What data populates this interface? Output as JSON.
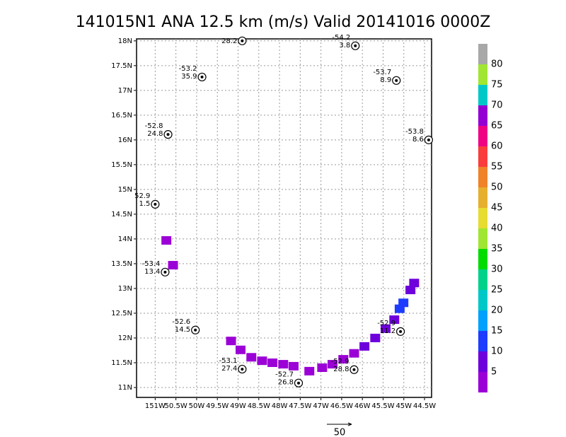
{
  "chart_data": {
    "type": "swath-map",
    "title": "141015N1 ANA 12.5 km (m/s) Valid 20141016 0000Z",
    "xlim": [
      151.45,
      144.33
    ],
    "xticks": [
      {
        "value": 151,
        "label": "151W"
      },
      {
        "value": 150.5,
        "label": "50.5W"
      },
      {
        "value": 150,
        "label": "50W"
      },
      {
        "value": 149.5,
        "label": "49.5W"
      },
      {
        "value": 149,
        "label": "49W"
      },
      {
        "value": 148.5,
        "label": "48.5W"
      },
      {
        "value": 148,
        "label": "48W"
      },
      {
        "value": 147.5,
        "label": "47.5W"
      },
      {
        "value": 147,
        "label": "47W"
      },
      {
        "value": 146.5,
        "label": "46.5W"
      },
      {
        "value": 146,
        "label": "46W"
      },
      {
        "value": 145.5,
        "label": "45.5W"
      },
      {
        "value": 145,
        "label": "45W"
      },
      {
        "value": 144.5,
        "label": "44.5W"
      }
    ],
    "ylim": [
      10.8,
      18.04
    ],
    "yticks": [
      {
        "value": 11,
        "label": "11N"
      },
      {
        "value": 11.5,
        "label": "11.5N"
      },
      {
        "value": 12,
        "label": "12N"
      },
      {
        "value": 12.5,
        "label": "12.5N"
      },
      {
        "value": 13,
        "label": "13N"
      },
      {
        "value": 13.5,
        "label": "13.5N"
      },
      {
        "value": 14,
        "label": "14N"
      },
      {
        "value": 14.5,
        "label": "14.5N"
      },
      {
        "value": 15,
        "label": "15N"
      },
      {
        "value": 15.5,
        "label": "15.5N"
      },
      {
        "value": 16,
        "label": "16N"
      },
      {
        "value": 16.5,
        "label": "16.5N"
      },
      {
        "value": 17,
        "label": "17N"
      },
      {
        "value": 17.5,
        "label": "17.5N"
      },
      {
        "value": 18,
        "label": "18N"
      }
    ],
    "grid": true,
    "stations": [
      {
        "lon": 148.9,
        "lat": 18.0,
        "labels": [
          "28.2"
        ]
      },
      {
        "lon": 146.17,
        "lat": 17.9,
        "labels": [
          "-54.2",
          "3.8"
        ]
      },
      {
        "lon": 149.87,
        "lat": 17.27,
        "labels": [
          "-53.2",
          "35.9"
        ]
      },
      {
        "lon": 145.18,
        "lat": 17.2,
        "labels": [
          "-53.7",
          "8.9"
        ]
      },
      {
        "lon": 150.69,
        "lat": 16.11,
        "labels": [
          "-52.8",
          "24.8"
        ]
      },
      {
        "lon": 144.4,
        "lat": 16.0,
        "labels": [
          "-53.8",
          "8.6"
        ]
      },
      {
        "lon": 151.0,
        "lat": 14.7,
        "labels": [
          "52.9",
          "1.5"
        ]
      },
      {
        "lon": 150.76,
        "lat": 13.33,
        "labels": [
          "-53.4",
          "13.4"
        ]
      },
      {
        "lon": 150.03,
        "lat": 12.16,
        "labels": [
          "-52.6",
          "14.5"
        ]
      },
      {
        "lon": 148.9,
        "lat": 11.37,
        "labels": [
          "-53.1",
          "27.4"
        ]
      },
      {
        "lon": 147.54,
        "lat": 11.09,
        "labels": [
          "-52.7",
          "26.8"
        ]
      },
      {
        "lon": 146.2,
        "lat": 11.36,
        "labels": [
          "-52.9",
          "28.8"
        ]
      },
      {
        "lon": 145.08,
        "lat": 12.13,
        "labels": [
          "-52.9",
          "11.2"
        ]
      }
    ],
    "cells": {
      "lon": [
        149.17,
        148.94,
        148.68,
        148.42,
        148.17,
        147.91,
        147.66,
        147.28,
        146.97,
        146.72,
        146.46,
        146.2,
        145.95,
        145.69,
        145.44,
        145.23,
        145.1,
        145.01,
        144.84,
        144.75,
        150.73,
        150.57
      ],
      "lat": [
        11.94,
        11.76,
        11.61,
        11.54,
        11.5,
        11.47,
        11.43,
        11.33,
        11.4,
        11.47,
        11.57,
        11.69,
        11.83,
        12.0,
        12.19,
        12.37,
        12.59,
        12.71,
        12.97,
        13.11,
        13.97,
        13.47
      ],
      "values": [
        3,
        4,
        4,
        3,
        4,
        4,
        3,
        4,
        4,
        3,
        4,
        4,
        5,
        5,
        5,
        6,
        10,
        12,
        6,
        6,
        4,
        4
      ]
    },
    "colorbar": {
      "lim": [
        0,
        85
      ],
      "ticks": [
        5,
        10,
        15,
        20,
        25,
        30,
        35,
        40,
        45,
        50,
        55,
        60,
        65,
        70,
        75,
        80
      ],
      "colors": [
        "#9b00d6",
        "#6e00dc",
        "#1e3cff",
        "#00a0ff",
        "#00c8c8",
        "#00d28c",
        "#00dc00",
        "#a0e632",
        "#e6dc32",
        "#e6af2d",
        "#f08228",
        "#fa3c3c",
        "#f00082",
        "#9400d3",
        "#00c8c8",
        "#a0e632",
        "#a8a8a8"
      ]
    },
    "vector_scale": "50"
  }
}
